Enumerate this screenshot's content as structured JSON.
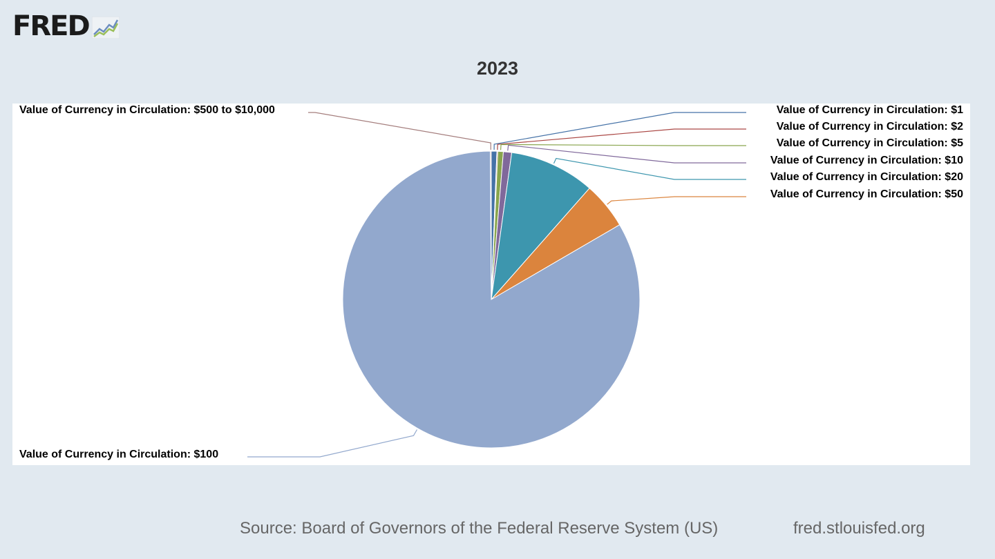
{
  "brand": {
    "logo_text": "FRED",
    "logo_icon": "fred-chart-line-icon"
  },
  "footer": {
    "source": "Source: Board of Governors of the Federal Reserve System (US)",
    "site": "fred.stlouisfed.org"
  },
  "chart_data": {
    "type": "pie",
    "title": "2023",
    "start_angle_deg": 0,
    "direction": "clockwise",
    "slices": [
      {
        "label": "Value of Currency in Circulation: $1",
        "value": 0.6,
        "color": "#4572a7"
      },
      {
        "label": "Value of Currency in Circulation: $2",
        "value": 0.1,
        "color": "#aa4643"
      },
      {
        "label": "Value of Currency in Circulation: $5",
        "value": 0.6,
        "color": "#89a54e"
      },
      {
        "label": "Value of Currency in Circulation: $10",
        "value": 0.9,
        "color": "#80699b"
      },
      {
        "label": "Value of Currency in Circulation: $20",
        "value": 9.3,
        "color": "#3d96ae"
      },
      {
        "label": "Value of Currency in Circulation: $50",
        "value": 5.1,
        "color": "#db843d"
      },
      {
        "label": "Value of Currency in Circulation: $100",
        "value": 83.3,
        "color": "#92a8cd"
      },
      {
        "label": "Value of Currency in Circulation: $500 to $10,000",
        "value": 0.1,
        "color": "#a47d7c"
      }
    ]
  }
}
